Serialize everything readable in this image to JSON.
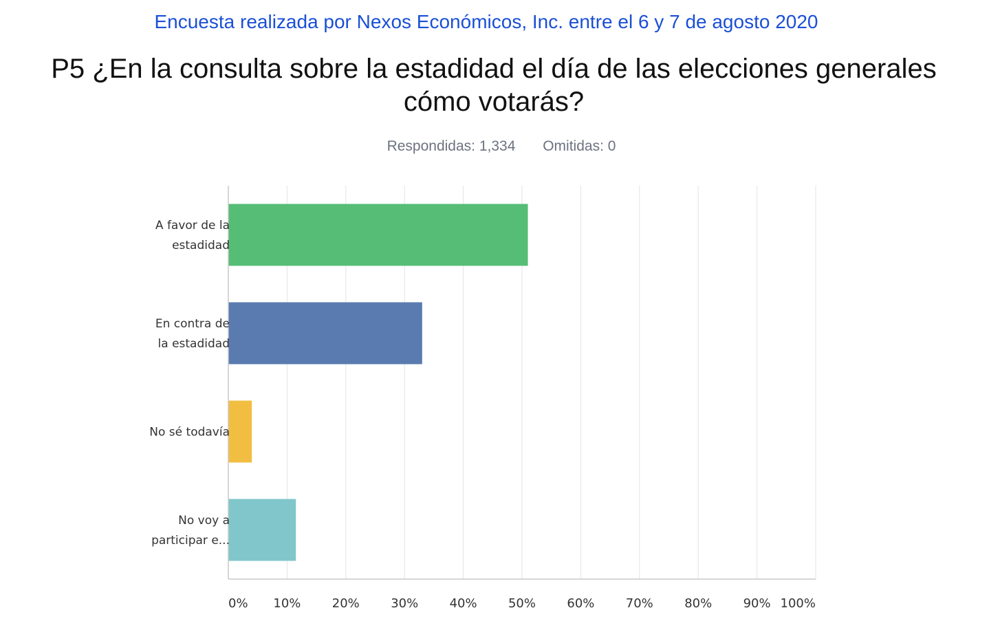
{
  "subtitle": "Encuesta realizada por Nexos Económicos, Inc. entre el 6 y 7 de agosto 2020",
  "title_line1": "P5 ¿En la consulta sobre la estadidad el día de las elecciones generales",
  "title_line2": "cómo votarás?",
  "stats": {
    "answered": "Respondidas: 1,334",
    "skipped": "Omitidas: 0"
  },
  "chart_data": {
    "type": "bar",
    "orientation": "horizontal",
    "categories": [
      [
        "A favor de la",
        "estadidad"
      ],
      [
        "En contra de",
        "la estadidad"
      ],
      [
        "No sé todavía"
      ],
      [
        "No voy a",
        "participar e..."
      ]
    ],
    "values": [
      51,
      33,
      4,
      11.5
    ],
    "colors": [
      "#55bd76",
      "#5a7bb0",
      "#f2be41",
      "#80c6ca"
    ],
    "xlim": [
      0,
      100
    ],
    "ticks": [
      0,
      10,
      20,
      30,
      40,
      50,
      60,
      70,
      80,
      90,
      100
    ],
    "tick_labels": [
      "0%",
      "10%",
      "20%",
      "30%",
      "40%",
      "50%",
      "60%",
      "70%",
      "80%",
      "90%",
      "100%"
    ],
    "grid": true
  }
}
